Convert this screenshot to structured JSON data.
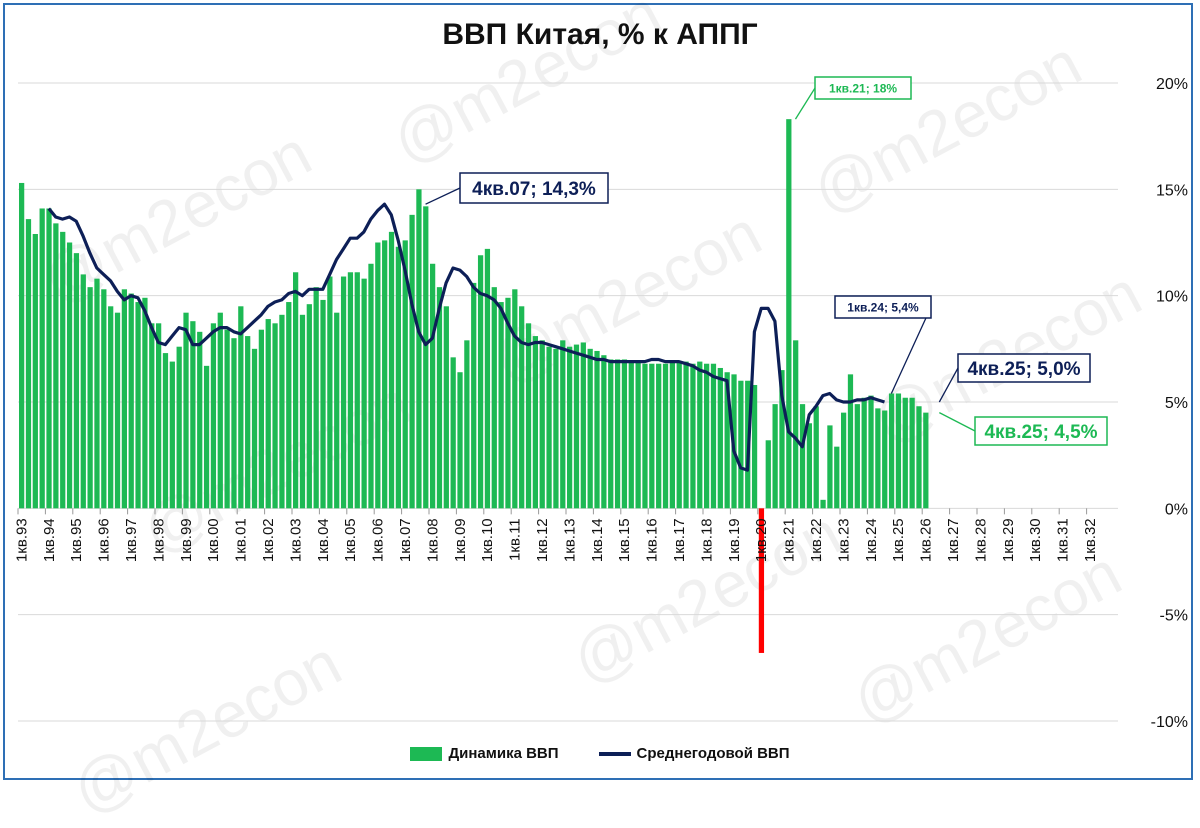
{
  "watermark": "@m2econ",
  "chart_data": {
    "type": "bar",
    "title": "ВВП Китая, % к АППГ",
    "ylim": [
      -10,
      20
    ],
    "y_ticks": [
      "20%",
      "15%",
      "10%",
      "5%",
      "0%",
      "-5%",
      "-10%"
    ],
    "y_tick_values": [
      20,
      15,
      10,
      5,
      0,
      -5,
      -10
    ],
    "x_labels": [
      "1кв.93",
      "1кв.94",
      "1кв.95",
      "1кв.96",
      "1кв.97",
      "1кв.98",
      "1кв.99",
      "1кв.00",
      "1кв.01",
      "1кв.02",
      "1кв.03",
      "1кв.04",
      "1кв.05",
      "1кв.06",
      "1кв.07",
      "1кв.08",
      "1кв.09",
      "1кв.10",
      "1кв.11",
      "1кв.12",
      "1кв.13",
      "1кв.14",
      "1кв.15",
      "1кв.16",
      "1кв.17",
      "1кв.18",
      "1кв.19",
      "1кв.20",
      "1кв.21",
      "1кв.22",
      "1кв.23",
      "1кв.24",
      "1кв.25",
      "1кв.26",
      "1кв.27",
      "1кв.28",
      "1кв.29",
      "1кв.30",
      "1кв.31",
      "1кв.32"
    ],
    "grid": "horizontal",
    "legend_position": "bottom",
    "series": [
      {
        "name": "Динамика ВВП",
        "kind": "bar",
        "color": "#1db954",
        "values": [
          15.3,
          13.6,
          12.9,
          14.1,
          14.1,
          13.4,
          13.0,
          12.5,
          12.0,
          11.0,
          10.4,
          10.8,
          10.3,
          9.5,
          9.2,
          10.3,
          10.1,
          9.7,
          9.9,
          8.7,
          8.7,
          7.3,
          6.9,
          7.6,
          9.2,
          8.8,
          8.3,
          6.7,
          8.7,
          9.2,
          8.4,
          8.0,
          9.5,
          8.1,
          7.5,
          8.4,
          8.9,
          8.7,
          9.1,
          9.7,
          11.1,
          9.1,
          9.6,
          10.4,
          9.8,
          10.9,
          9.2,
          10.9,
          11.1,
          11.1,
          10.8,
          11.5,
          12.5,
          12.6,
          13.0,
          12.3,
          12.6,
          13.8,
          15.0,
          14.2,
          11.5,
          10.4,
          9.5,
          7.1,
          6.4,
          7.9,
          10.6,
          11.9,
          12.2,
          10.4,
          9.7,
          9.9,
          10.3,
          9.5,
          8.7,
          8.1,
          7.9,
          7.6,
          7.5,
          7.9,
          7.6,
          7.7,
          7.8,
          7.5,
          7.4,
          7.2,
          7.0,
          7.0,
          7.0,
          6.9,
          6.9,
          6.8,
          6.8,
          6.8,
          6.8,
          6.9,
          6.9,
          6.9,
          6.8,
          6.9,
          6.8,
          6.8,
          6.6,
          6.4,
          6.3,
          6.0,
          6.0,
          5.8,
          -6.8,
          3.2,
          4.9,
          6.5,
          18.3,
          7.9,
          4.9,
          4.0,
          4.8,
          0.4,
          3.9,
          2.9,
          4.5,
          6.3,
          4.9,
          5.2,
          5.3,
          4.7,
          4.6,
          5.4,
          5.4,
          5.2,
          5.2,
          4.8,
          4.5
        ]
      },
      {
        "name": "Среднегодовой ВВП",
        "kind": "line",
        "color": "#0d1f57",
        "start_index": 4,
        "values": [
          14.1,
          13.7,
          13.6,
          13.7,
          13.5,
          12.8,
          12.0,
          11.3,
          11.0,
          10.7,
          10.2,
          9.8,
          10.0,
          9.9,
          9.3,
          8.5,
          7.8,
          7.7,
          8.1,
          8.5,
          8.4,
          7.7,
          7.7,
          8.0,
          8.3,
          8.5,
          8.5,
          8.3,
          8.2,
          8.5,
          8.8,
          9.1,
          9.5,
          9.7,
          9.8,
          10.1,
          10.2,
          10.0,
          10.3,
          10.3,
          10.3,
          11.0,
          11.7,
          12.2,
          12.7,
          12.7,
          13.0,
          13.6,
          14.0,
          14.3,
          13.8,
          12.6,
          11.2,
          9.6,
          8.3,
          7.7,
          8.0,
          9.4,
          10.6,
          11.3,
          11.2,
          10.9,
          10.4,
          10.1,
          10.0,
          9.8,
          9.4,
          8.7,
          8.1,
          7.8,
          7.7,
          7.8,
          7.8,
          7.7,
          7.6,
          7.5,
          7.4,
          7.3,
          7.2,
          7.1,
          7.0,
          7.0,
          6.9,
          6.9,
          6.9,
          6.9,
          6.9,
          6.9,
          7.0,
          7.0,
          6.9,
          6.9,
          6.9,
          6.8,
          6.7,
          6.5,
          6.4,
          6.2,
          6.1,
          6.0,
          2.7,
          1.9,
          1.8,
          8.3,
          9.4,
          9.4,
          8.8,
          5.3,
          3.6,
          3.3,
          2.9,
          4.4,
          4.8,
          5.3,
          5.4,
          5.1,
          5.0,
          5.0,
          5.1,
          5.1,
          5.2,
          5.1,
          5.0
        ]
      }
    ],
    "annotations": [
      {
        "text": "4кв.07; 14,3%",
        "series": "Среднегодовой ВВП"
      },
      {
        "text": "1кв.21; 18%",
        "series": "Динамика ВВП"
      },
      {
        "text": "1кв.24; 5,4%",
        "series": "Среднегодовой ВВП"
      },
      {
        "text": "4кв.25; 5,0%",
        "series": "Среднегодовой ВВП"
      },
      {
        "text": "4кв.25; 4,5%",
        "series": "Динамика ВВП"
      }
    ],
    "legend": [
      "Динамика ВВП",
      "Среднегодовой ВВП"
    ]
  }
}
